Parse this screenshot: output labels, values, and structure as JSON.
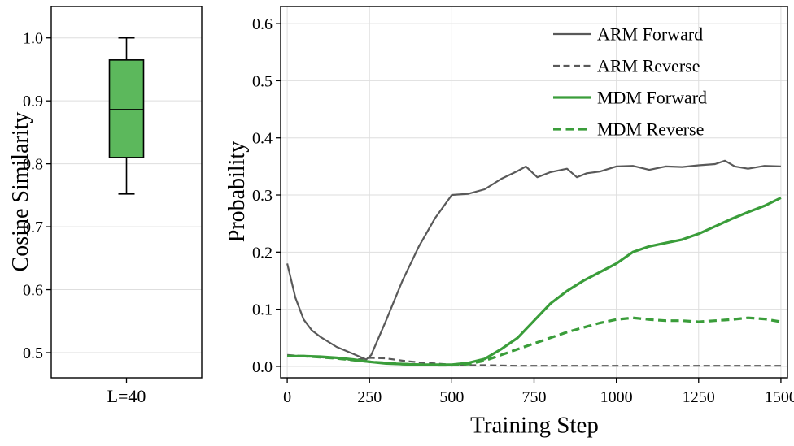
{
  "colors": {
    "green_line": "#3a9d3a",
    "green_fill": "#5cb85c",
    "gray_line": "#595959",
    "grid": "#dedede",
    "axis": "#000000",
    "text": "#000000",
    "background": "#ffffff"
  },
  "chart_data": [
    {
      "type": "box",
      "title": "",
      "xlabel": "",
      "ylabel": "Cosine Similarity",
      "categories": [
        "L=40"
      ],
      "ylim": [
        0.46,
        1.05
      ],
      "yticks": [
        0.5,
        0.6,
        0.7,
        0.8,
        0.9,
        1.0
      ],
      "ytick_labels": [
        "0.5",
        "0.6",
        "0.7",
        "0.8",
        "0.9",
        "1.0"
      ],
      "grid": true,
      "boxes": [
        {
          "category": "L=40",
          "whisker_low": 0.752,
          "q1": 0.81,
          "median": 0.886,
          "q3": 0.965,
          "whisker_high": 1.0,
          "fill": "#5cb85c",
          "edge": "#000000"
        }
      ]
    },
    {
      "type": "line",
      "title": "",
      "xlabel": "Training Step",
      "ylabel": "Probability",
      "xlim": [
        -20,
        1520
      ],
      "ylim": [
        -0.02,
        0.63
      ],
      "xticks": [
        0,
        250,
        500,
        750,
        1000,
        1250,
        1500
      ],
      "xtick_labels": [
        "0",
        "250",
        "500",
        "750",
        "1000",
        "1250",
        "1500"
      ],
      "yticks": [
        0.0,
        0.1,
        0.2,
        0.3,
        0.4,
        0.5,
        0.6
      ],
      "ytick_labels": [
        "0.0",
        "0.1",
        "0.2",
        "0.3",
        "0.4",
        "0.5",
        "0.6"
      ],
      "grid": true,
      "legend": {
        "position": "top-right",
        "frame": false
      },
      "series": [
        {
          "name": "ARM Forward",
          "color": "#595959",
          "width": 2.2,
          "dash": null,
          "x": [
            0,
            25,
            50,
            75,
            100,
            150,
            200,
            240,
            255,
            300,
            350,
            400,
            450,
            500,
            550,
            600,
            650,
            700,
            725,
            760,
            800,
            850,
            880,
            910,
            950,
            1000,
            1050,
            1100,
            1150,
            1200,
            1250,
            1300,
            1330,
            1360,
            1400,
            1450,
            1500
          ],
          "y": [
            0.18,
            0.12,
            0.082,
            0.063,
            0.052,
            0.034,
            0.022,
            0.012,
            0.02,
            0.08,
            0.15,
            0.21,
            0.26,
            0.3,
            0.302,
            0.31,
            0.328,
            0.342,
            0.35,
            0.331,
            0.34,
            0.346,
            0.331,
            0.338,
            0.341,
            0.35,
            0.351,
            0.344,
            0.35,
            0.349,
            0.352,
            0.354,
            0.36,
            0.35,
            0.346,
            0.351,
            0.35
          ]
        },
        {
          "name": "ARM Reverse",
          "color": "#595959",
          "width": 2.2,
          "dash": "8,4.5",
          "x": [
            0,
            100,
            200,
            250,
            300,
            350,
            400,
            450,
            500,
            550,
            600,
            700,
            800,
            900,
            1000,
            1100,
            1200,
            1300,
            1400,
            1500
          ],
          "y": [
            0.02,
            0.016,
            0.011,
            0.015,
            0.014,
            0.01,
            0.007,
            0.005,
            0.003,
            0.002,
            0.002,
            0.001,
            0.001,
            0.001,
            0.001,
            0.001,
            0.001,
            0.001,
            0.001,
            0.001
          ]
        },
        {
          "name": "MDM Forward",
          "color": "#3a9d3a",
          "width": 3.2,
          "dash": null,
          "x": [
            0,
            50,
            100,
            150,
            200,
            250,
            300,
            350,
            400,
            450,
            500,
            550,
            600,
            650,
            700,
            750,
            800,
            850,
            900,
            950,
            1000,
            1050,
            1100,
            1150,
            1200,
            1250,
            1300,
            1350,
            1400,
            1450,
            1500
          ],
          "y": [
            0.018,
            0.018,
            0.017,
            0.015,
            0.012,
            0.008,
            0.005,
            0.004,
            0.003,
            0.003,
            0.003,
            0.006,
            0.013,
            0.03,
            0.05,
            0.08,
            0.11,
            0.132,
            0.15,
            0.165,
            0.18,
            0.2,
            0.21,
            0.216,
            0.222,
            0.232,
            0.245,
            0.258,
            0.27,
            0.281,
            0.295
          ]
        },
        {
          "name": "MDM Reverse",
          "color": "#3a9d3a",
          "width": 3.2,
          "dash": "10,5.5",
          "x": [
            0,
            50,
            100,
            150,
            200,
            250,
            300,
            350,
            400,
            450,
            500,
            550,
            600,
            650,
            700,
            750,
            800,
            850,
            900,
            950,
            1000,
            1050,
            1100,
            1150,
            1200,
            1250,
            1300,
            1350,
            1400,
            1450,
            1500
          ],
          "y": [
            0.018,
            0.018,
            0.016,
            0.014,
            0.011,
            0.008,
            0.006,
            0.004,
            0.003,
            0.002,
            0.002,
            0.004,
            0.01,
            0.02,
            0.03,
            0.04,
            0.05,
            0.06,
            0.068,
            0.076,
            0.082,
            0.085,
            0.082,
            0.08,
            0.08,
            0.078,
            0.08,
            0.082,
            0.085,
            0.083,
            0.078
          ]
        }
      ]
    }
  ]
}
